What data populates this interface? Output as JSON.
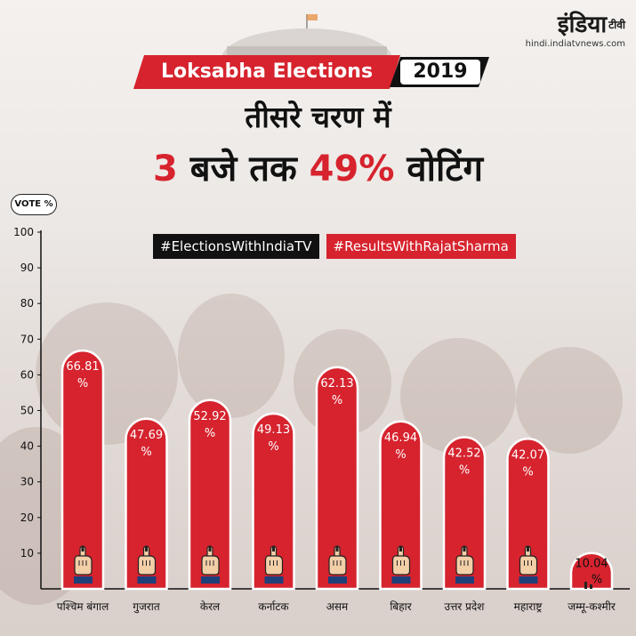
{
  "header": {
    "logo_main": "इंडिया",
    "logo_suffix": "टीवी",
    "logo_url": "hindi.indiatvnews.com",
    "banner_text": "Loksabha Elections",
    "banner_year": "2019",
    "title_line1": "तीसरे चरण में",
    "title_num1": "3",
    "title_mid": "बजे तक",
    "title_num2": "49%",
    "title_end": "वोटिंग"
  },
  "hashtags": [
    "#ElectionsWithIndiaTV",
    "#ResultsWithRajatSharma"
  ],
  "colors": {
    "accent": "#d6232e",
    "dark": "#111111"
  },
  "chart_data": {
    "type": "bar",
    "ylabel": "VOTE %",
    "ylim": [
      0,
      100
    ],
    "yticks": [
      10,
      20,
      30,
      40,
      50,
      60,
      70,
      80,
      90,
      100
    ],
    "categories": [
      "पश्चिम बंगाल",
      "गुजरात",
      "केरल",
      "कर्नाटक",
      "असम",
      "बिहार",
      "उत्तर प्रदेश",
      "महाराष्ट्र",
      "जम्मू-कश्मीर"
    ],
    "values": [
      66.81,
      47.69,
      52.92,
      49.13,
      62.13,
      46.94,
      42.52,
      42.07,
      10.04
    ],
    "value_labels": [
      "66.81",
      "47.69",
      "52.92",
      "49.13",
      "62.13",
      "46.94",
      "42.52",
      "42.07",
      "10.04"
    ],
    "unit": "%",
    "bar_color": "#d6232e",
    "icon": "finger-vote-icon"
  }
}
